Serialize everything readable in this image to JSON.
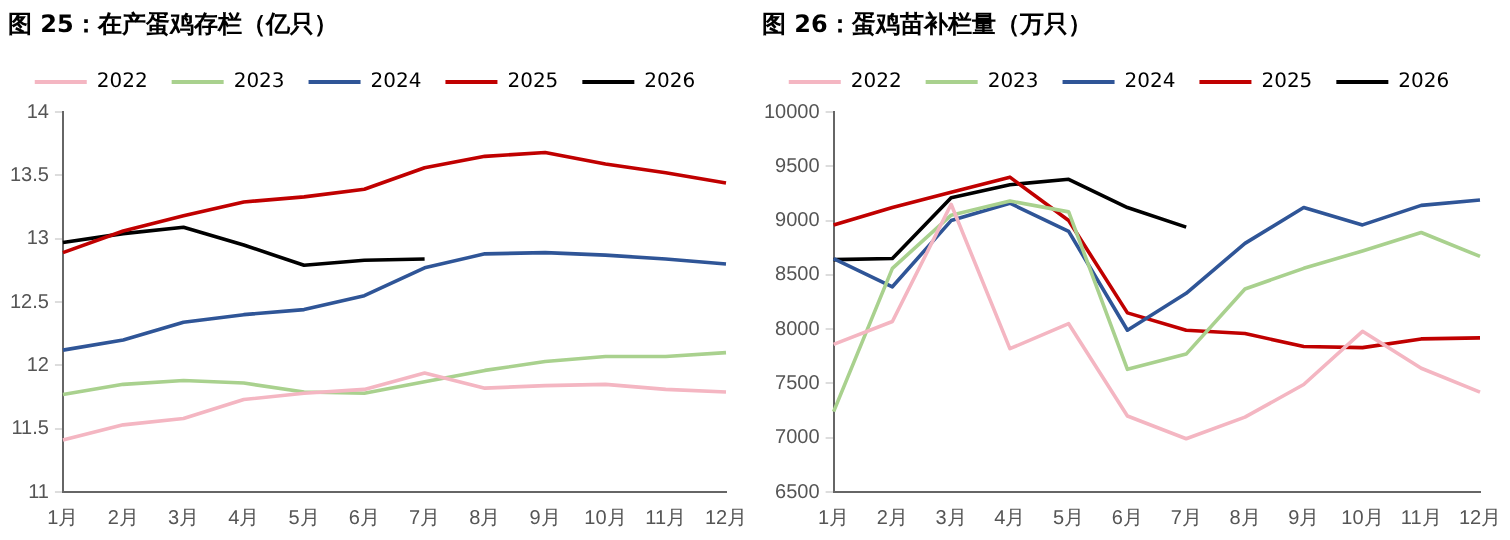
{
  "chart_data": [
    {
      "type": "line",
      "title": "图 25：在产蛋鸡存栏（亿只）",
      "categories": [
        "1月",
        "2月",
        "3月",
        "4月",
        "5月",
        "6月",
        "7月",
        "8月",
        "9月",
        "10月",
        "11月",
        "12月"
      ],
      "ylim": [
        11,
        14
      ],
      "yticks": [
        11,
        11.5,
        12,
        12.5,
        13,
        13.5,
        14
      ],
      "grid": false,
      "legend": "top",
      "marker": "none",
      "series": [
        {
          "name": "2022",
          "color": "#f4b6c2",
          "values": [
            11.41,
            11.53,
            11.58,
            11.73,
            11.78,
            11.81,
            11.94,
            11.82,
            11.84,
            11.85,
            11.81,
            11.79
          ]
        },
        {
          "name": "2023",
          "color": "#a9d18e",
          "values": [
            11.77,
            11.85,
            11.88,
            11.86,
            11.79,
            11.78,
            11.87,
            11.96,
            12.03,
            12.07,
            12.07,
            12.1
          ]
        },
        {
          "name": "2024",
          "color": "#2f5597",
          "values": [
            12.12,
            12.2,
            12.34,
            12.4,
            12.44,
            12.55,
            12.77,
            12.88,
            12.89,
            12.87,
            12.84,
            12.8
          ]
        },
        {
          "name": "2025",
          "color": "#c00000",
          "values": [
            12.89,
            13.06,
            13.18,
            13.29,
            13.33,
            13.39,
            13.56,
            13.65,
            13.68,
            13.59,
            13.52,
            13.44
          ]
        },
        {
          "name": "2026",
          "color": "#000000",
          "values": [
            12.97,
            13.04,
            13.09,
            12.95,
            12.79,
            12.83,
            12.84,
            null,
            null,
            null,
            null,
            null
          ]
        }
      ]
    },
    {
      "type": "line",
      "title": "图 26：蛋鸡苗补栏量（万只）",
      "categories": [
        "1月",
        "2月",
        "3月",
        "4月",
        "5月",
        "6月",
        "7月",
        "8月",
        "9月",
        "10月",
        "11月",
        "12月"
      ],
      "ylim": [
        6500,
        10000
      ],
      "yticks": [
        6500,
        7000,
        7500,
        8000,
        8500,
        9000,
        9500,
        10000
      ],
      "grid": false,
      "legend": "top",
      "marker": "none",
      "series": [
        {
          "name": "2022",
          "color": "#f4b6c2",
          "values": [
            7860,
            8070,
            9150,
            7820,
            8050,
            7200,
            6990,
            7190,
            7490,
            7980,
            7640,
            7420
          ]
        },
        {
          "name": "2023",
          "color": "#a9d18e",
          "values": [
            7240,
            8560,
            9050,
            9180,
            9080,
            7630,
            7770,
            8370,
            8560,
            8720,
            8890,
            8670
          ]
        },
        {
          "name": "2024",
          "color": "#2f5597",
          "values": [
            8650,
            8390,
            9000,
            9160,
            8900,
            7990,
            8330,
            8790,
            9120,
            8960,
            9140,
            9190
          ]
        },
        {
          "name": "2025",
          "color": "#c00000",
          "values": [
            8960,
            9120,
            9260,
            9400,
            9000,
            8150,
            7990,
            7960,
            7840,
            7830,
            7910,
            7920
          ]
        },
        {
          "name": "2026",
          "color": "#000000",
          "values": [
            8640,
            8650,
            9210,
            9330,
            9380,
            9120,
            8940,
            null,
            null,
            null,
            null,
            null
          ]
        }
      ]
    }
  ]
}
